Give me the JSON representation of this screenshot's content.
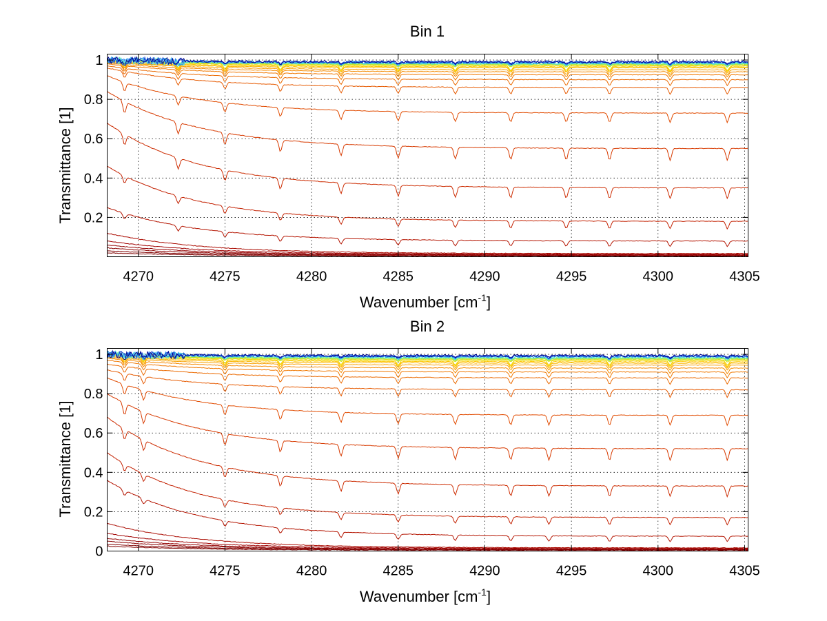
{
  "chart_data": [
    {
      "type": "line",
      "title": "Bin 1",
      "xlabel": "Wavenumber [cm",
      "xlabel_superscript": "-1",
      "xlabel_suffix": "]",
      "ylabel": "Transmittance [1]",
      "xlim": [
        4268.2,
        4305.2
      ],
      "ylim": [
        0,
        1.03
      ],
      "xticks": [
        4270,
        4275,
        4280,
        4285,
        4290,
        4295,
        4300,
        4305
      ],
      "xtick_labels": [
        "4270",
        "4275",
        "4280",
        "4285",
        "4290",
        "4295",
        "4300",
        "4305"
      ],
      "yticks": [
        0.2,
        0.4,
        0.6,
        0.8,
        1
      ],
      "ytick_labels": [
        "0.2",
        "0.4",
        "0.6",
        "0.8",
        "1"
      ],
      "grid": true,
      "absorption_lines": [
        4269.2,
        4272.3,
        4275.0,
        4278.2,
        4281.7,
        4285.0,
        4288.3,
        4291.5,
        4294.7,
        4297.2,
        4300.7,
        4304.0
      ],
      "colors": [
        "#7f0000",
        "#800000",
        "#8a0000",
        "#930000",
        "#a00000",
        "#aa0a00",
        "#b41400",
        "#c32000",
        "#cc2b00",
        "#d73a00",
        "#e14b00",
        "#e65a00",
        "#eb6a00",
        "#f07800",
        "#f58a00",
        "#f8a000",
        "#fbb500",
        "#fdc800",
        "#f0d800",
        "#d8e01c",
        "#b4ea3c",
        "#8ff060",
        "#70f0a0",
        "#50e0e0",
        "#3ab0f0",
        "#2080f0",
        "#1040d0",
        "#000090"
      ],
      "series_end_values": [
        0.004,
        0.006,
        0.008,
        0.01,
        0.013,
        0.016,
        0.08,
        0.18,
        0.35,
        0.55,
        0.73,
        0.86,
        0.9,
        0.925,
        0.94,
        0.95,
        0.96,
        0.965,
        0.97,
        0.975,
        0.978,
        0.98,
        0.982,
        0.984,
        0.986,
        0.988,
        0.99,
        0.99
      ],
      "series_start_values": [
        0.02,
        0.03,
        0.045,
        0.06,
        0.08,
        0.12,
        0.25,
        0.46,
        0.68,
        0.84,
        0.92,
        0.96,
        0.97,
        0.98,
        0.985,
        0.99,
        0.99,
        0.995,
        1.0,
        1.0,
        1.0,
        1.0,
        1.0,
        1.0,
        1.0,
        1.0,
        1.0,
        1.0
      ]
    },
    {
      "type": "line",
      "title": "Bin 2",
      "xlabel": "Wavenumber [cm",
      "xlabel_superscript": "-1",
      "xlabel_suffix": "]",
      "ylabel": "Transmittance [1]",
      "xlim": [
        4268.2,
        4305.2
      ],
      "ylim": [
        0,
        1.03
      ],
      "xticks": [
        4270,
        4275,
        4280,
        4285,
        4290,
        4295,
        4300,
        4305
      ],
      "xtick_labels": [
        "4270",
        "4275",
        "4280",
        "4285",
        "4290",
        "4295",
        "4300",
        "4305"
      ],
      "yticks": [
        0,
        0.2,
        0.4,
        0.6,
        0.8,
        1
      ],
      "ytick_labels": [
        "0",
        "0.2",
        "0.4",
        "0.6",
        "0.8",
        "1"
      ],
      "grid": true,
      "absorption_lines": [
        4269.2,
        4270.3,
        4275.0,
        4278.2,
        4281.7,
        4285.0,
        4288.3,
        4291.5,
        4293.7,
        4297.2,
        4300.7,
        4304.0
      ],
      "colors": [
        "#7f0000",
        "#800000",
        "#8a0000",
        "#930000",
        "#a00000",
        "#aa0a00",
        "#b41400",
        "#c32000",
        "#cc2b00",
        "#d73a00",
        "#e14b00",
        "#e65a00",
        "#eb6a00",
        "#f07800",
        "#f58a00",
        "#f8a000",
        "#fbb500",
        "#fdc800",
        "#f0d800",
        "#d8e01c",
        "#b4ea3c",
        "#8ff060",
        "#70f0a0",
        "#50e0e0",
        "#3ab0f0",
        "#2080f0",
        "#1040d0",
        "#000090"
      ],
      "series_end_values": [
        0.004,
        0.006,
        0.008,
        0.01,
        0.013,
        0.016,
        0.075,
        0.17,
        0.33,
        0.52,
        0.69,
        0.82,
        0.88,
        0.91,
        0.93,
        0.945,
        0.955,
        0.962,
        0.968,
        0.973,
        0.977,
        0.98,
        0.983,
        0.986,
        0.988,
        0.99,
        0.992,
        0.993
      ],
      "series_start_values": [
        0.025,
        0.035,
        0.05,
        0.065,
        0.09,
        0.14,
        0.36,
        0.5,
        0.68,
        0.8,
        0.88,
        0.92,
        0.95,
        0.97,
        0.98,
        0.985,
        0.99,
        0.995,
        1.0,
        1.0,
        1.0,
        1.0,
        1.0,
        1.0,
        1.0,
        1.0,
        1.0,
        1.0
      ]
    }
  ]
}
